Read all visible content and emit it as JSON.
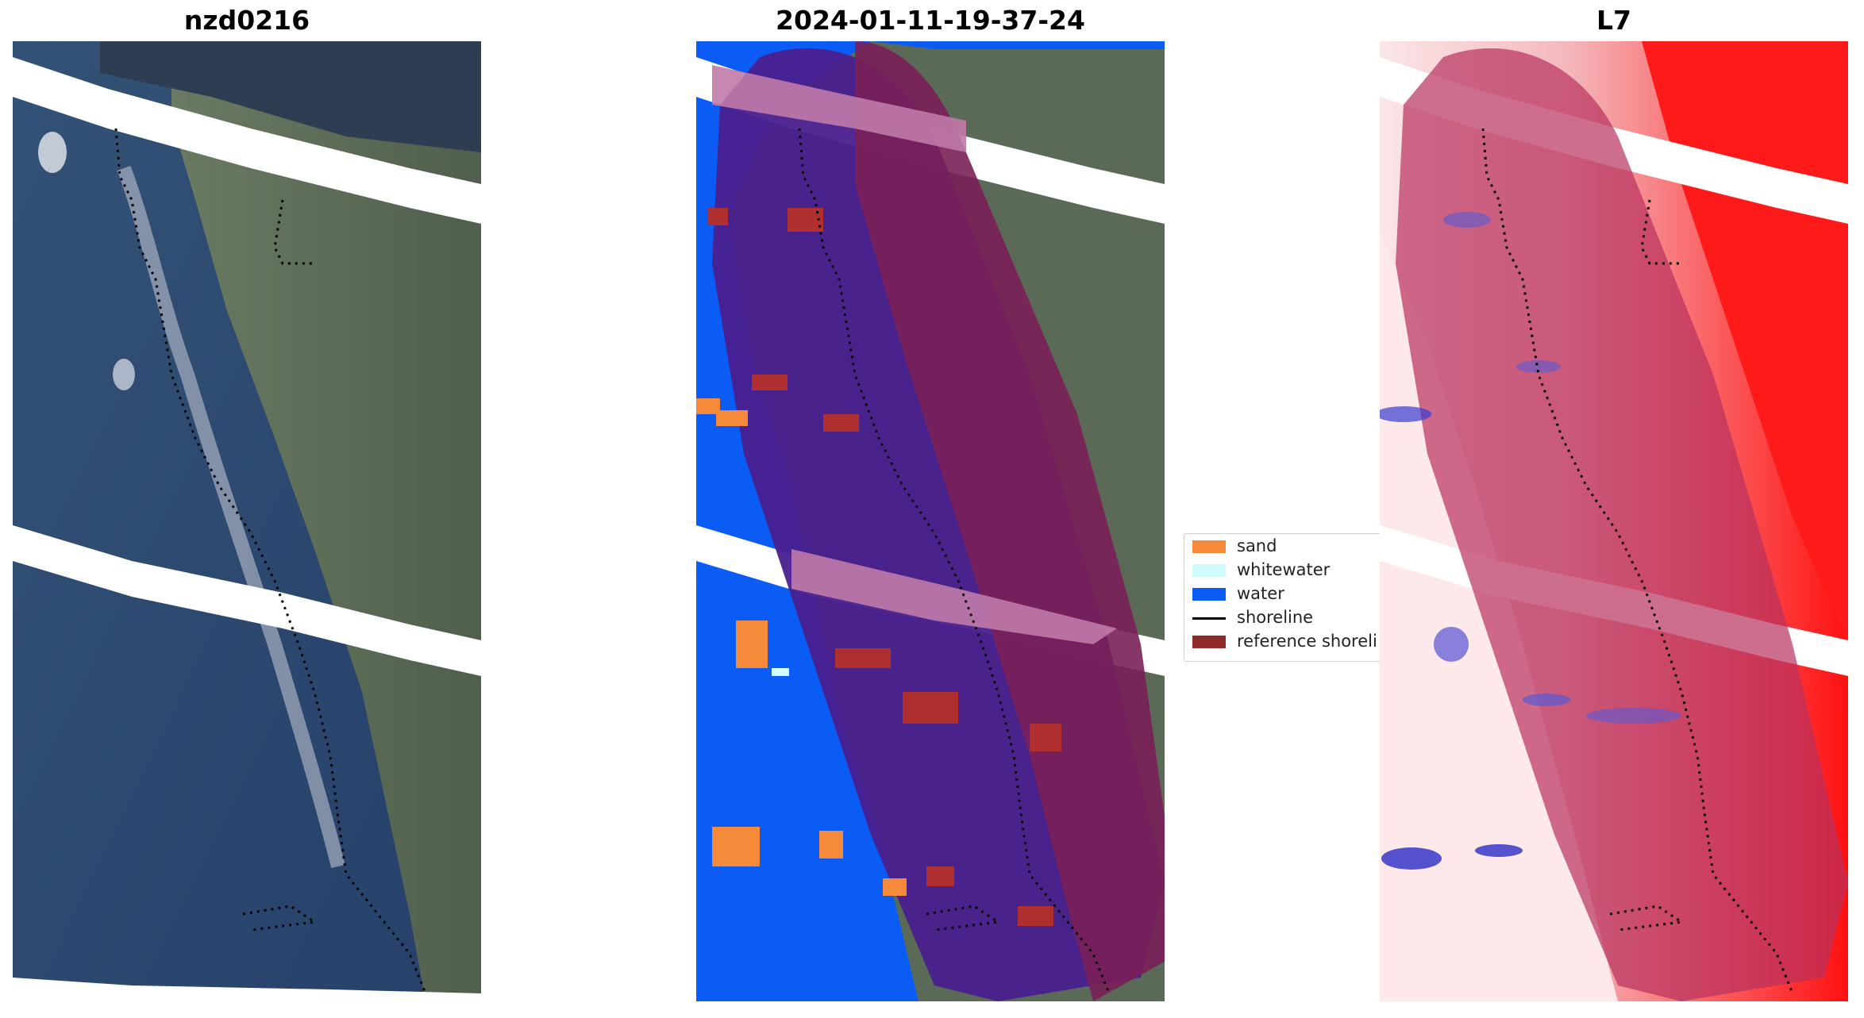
{
  "panels": [
    {
      "title": "nzd0216",
      "kind": "rgb"
    },
    {
      "title": "2024-01-11-19-37-24",
      "kind": "classified"
    },
    {
      "title": "L7",
      "kind": "index"
    }
  ],
  "legend": {
    "items": [
      {
        "label": "sand",
        "type": "patch",
        "color": "#f58a3a"
      },
      {
        "label": "whitewater",
        "type": "patch",
        "color": "#cffcfc"
      },
      {
        "label": "water",
        "type": "patch",
        "color": "#0a5cf5"
      },
      {
        "label": "shoreline",
        "type": "line",
        "color": "#000000"
      },
      {
        "label": "reference shoreli",
        "type": "patch",
        "color": "#8e2a2a"
      }
    ]
  },
  "colors": {
    "sea": "#2f4a6e",
    "land": "#5a6a52",
    "water_class": "#0a5cf5",
    "sand_class": "#f58a3a",
    "buffer_purple": "#4a1f8e",
    "buffer_maroon": "#7a2058",
    "index_high": "#ff0000",
    "index_low": "#ffffff",
    "index_neg": "#3030c8"
  }
}
